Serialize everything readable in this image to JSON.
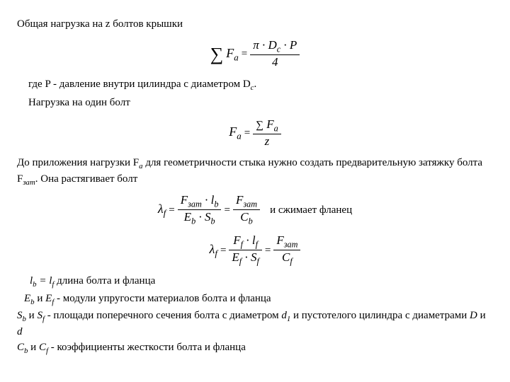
{
  "para1": "Общая нагрузка на z болтов крышки",
  "formula1": {
    "lhs_sum": "∑",
    "lhs_F": "F",
    "lhs_sub": "a",
    "eq": "=",
    "num": "π · Dᶜ · P",
    "den": "4"
  },
  "para2_prefix": "где P - давление внутри цилиндра с диаметром D",
  "para2_sub": "c",
  "para2_suffix": ".",
  "para3": "Нагрузка на один болт",
  "formula2": {
    "lhs_F": "F",
    "lhs_sub": "a",
    "eq": "=",
    "num_sum": "∑",
    "num_F": "F",
    "num_sub": "a",
    "den": "z"
  },
  "para4_p1": "До приложения нагрузки F",
  "para4_s1": "a",
  "para4_p2": " для геометричности стыка нужно создать предварительную  затяжку болта F",
  "para4_s2": "зат",
  "para4_p3": ". Она растягивает болт",
  "formula3": {
    "lhs": "λ",
    "lhs_sub": "f",
    "eq": "=",
    "f1_num": "F_{зат} · l_b",
    "f1_den": "E_b · S_b",
    "eq2": "=",
    "f2_num": "F_{зат}",
    "f2_den": "C_b"
  },
  "para5": "и сжимает фланец",
  "formula4": {
    "lhs": "λ",
    "lhs_sub": "f",
    "eq": "=",
    "f1_num": "F_f · l_f",
    "f1_den": "E_f · S_f",
    "eq2": "=",
    "f2_num": "F_{зат}",
    "f2_den": "C_f"
  },
  "def1": "lb = lf  длина болта и фланца",
  "def2": "Eb и Ef  - модули упругости материалов болта и фланца",
  "def3_p1": "Sb и  Sf  - площади поперечного сечения болта с диаметром d",
  "def3_sub": "1",
  "def3_p2": " и пустотелого цилиндра с диаметрами D и d",
  "def4": "Cb и Cf  - коэффициенты жесткости болта и фланца"
}
